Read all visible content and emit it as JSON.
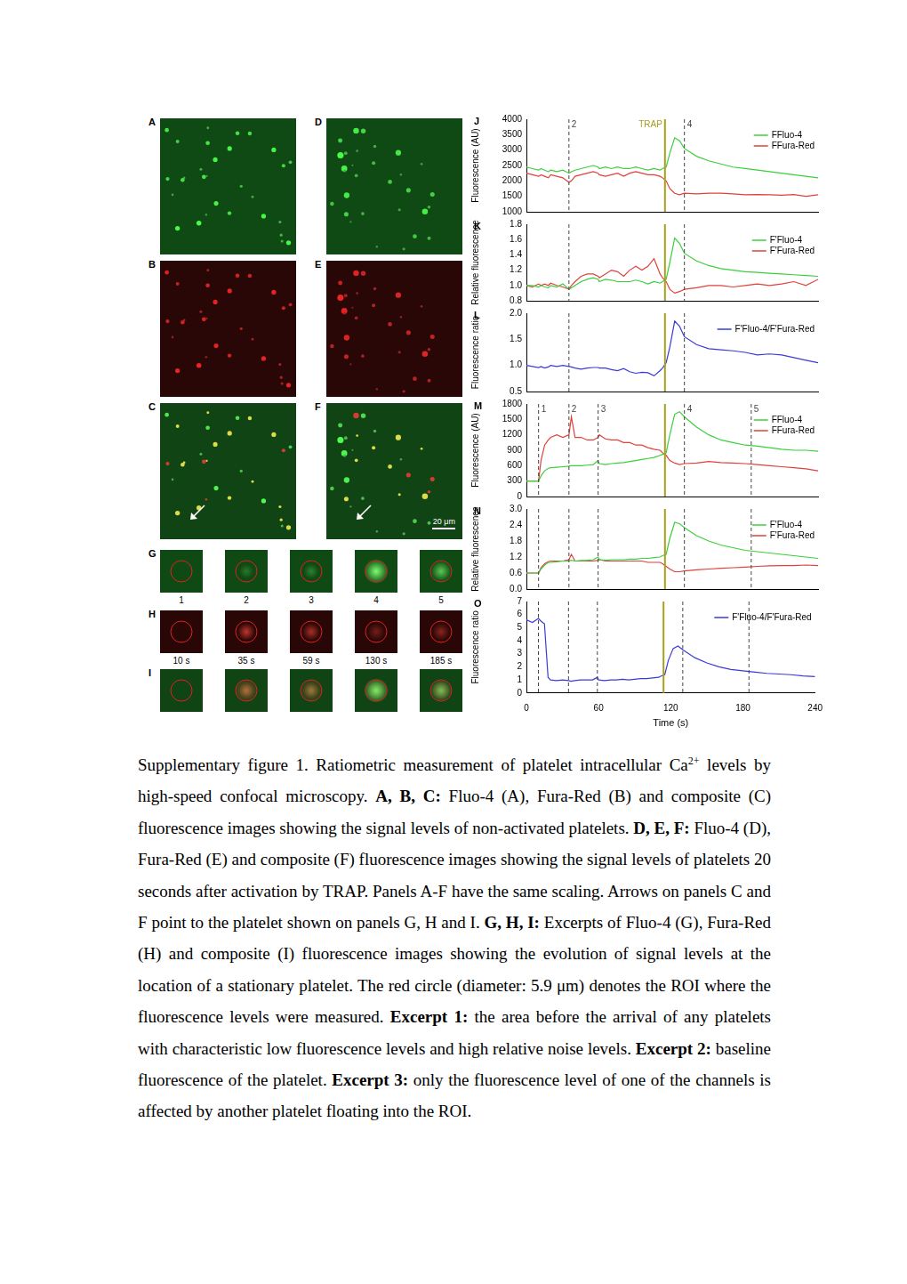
{
  "image_panels": {
    "large": [
      "A",
      "B",
      "C",
      "D",
      "E",
      "F"
    ],
    "arrows": [
      "C",
      "F"
    ],
    "scale_bar": {
      "panel": "F",
      "label": "20 μm"
    },
    "excerpt_rows": [
      "G",
      "H",
      "I"
    ],
    "excerpt_captions": {
      "G": [
        "1",
        "2",
        "3",
        "4",
        "5"
      ],
      "H": [
        "10 s",
        "35 s",
        "59 s",
        "130 s",
        "185 s"
      ]
    }
  },
  "chart_data": [
    {
      "label": "J",
      "type": "line",
      "y_label": "Fluorescence (AU)",
      "legend": "upper right",
      "tick_labels": "y",
      "grid": false,
      "xlim": [
        0,
        240
      ],
      "ylim": [
        1000,
        4000
      ],
      "yticks": [
        1000,
        1500,
        2000,
        2500,
        3000,
        3500,
        4000
      ],
      "x": [
        0,
        5,
        10,
        12,
        15,
        18,
        20,
        25,
        30,
        35,
        37,
        40,
        45,
        50,
        55,
        59,
        60,
        65,
        70,
        75,
        80,
        85,
        90,
        95,
        100,
        105,
        110,
        112,
        115,
        118,
        122,
        126,
        130,
        140,
        150,
        160,
        170,
        180,
        190,
        200,
        210,
        220,
        230,
        240
      ],
      "series": [
        {
          "name": "FFluo-4",
          "color": "#3ccf3c",
          "values": [
            2450,
            2400,
            2350,
            2400,
            2350,
            2300,
            2350,
            2300,
            2350,
            2250,
            2300,
            2350,
            2400,
            2450,
            2500,
            2450,
            2400,
            2450,
            2400,
            2450,
            2400,
            2400,
            2450,
            2400,
            2350,
            2400,
            2350,
            2400,
            2450,
            2900,
            3400,
            3300,
            3050,
            2800,
            2650,
            2550,
            2450,
            2400,
            2350,
            2300,
            2250,
            2200,
            2150,
            2100
          ]
        },
        {
          "name": "FFura-Red",
          "color": "#e0413a",
          "values": [
            2250,
            2200,
            2150,
            2200,
            2150,
            2100,
            2200,
            2150,
            2100,
            1950,
            2000,
            2150,
            2200,
            2250,
            2300,
            2250,
            2200,
            2150,
            2200,
            2250,
            2150,
            2250,
            2300,
            2250,
            2200,
            2200,
            2150,
            2100,
            2000,
            1750,
            1600,
            1550,
            1600,
            1580,
            1600,
            1600,
            1580,
            1550,
            1560,
            1550,
            1540,
            1560,
            1500,
            1550
          ]
        }
      ],
      "annotations": [
        {
          "value": 35,
          "label": "2",
          "line_style": "dashed"
        },
        {
          "value": 114,
          "label": "TRAP",
          "color": "#a89f1c",
          "line_style": "solid"
        },
        {
          "value": 130,
          "label": "4",
          "line_style": "dashed"
        }
      ]
    },
    {
      "label": "K",
      "type": "line",
      "y_label": "Relative fluorescence",
      "legend": "upper right",
      "tick_labels": "y",
      "grid": false,
      "xlim": [
        0,
        240
      ],
      "ylim": [
        0.8,
        1.8
      ],
      "yticks": [
        0.8,
        {
          "value": 1,
          "label": "1.0"
        },
        1.2,
        1.4,
        1.6,
        1.8
      ],
      "x": [
        0,
        5,
        10,
        12,
        15,
        18,
        20,
        25,
        30,
        35,
        37,
        40,
        45,
        50,
        55,
        59,
        60,
        65,
        70,
        75,
        80,
        85,
        90,
        95,
        100,
        105,
        110,
        112,
        115,
        118,
        122,
        126,
        130,
        140,
        150,
        160,
        170,
        180,
        190,
        200,
        210,
        220,
        230,
        240
      ],
      "series": [
        {
          "name": "F'Fluo-4",
          "color": "#3ccf3c",
          "values": [
            1.0,
            1.0,
            0.98,
            1.0,
            0.98,
            0.97,
            1.0,
            0.98,
            1.02,
            0.95,
            0.97,
            1.0,
            1.05,
            1.08,
            1.1,
            1.08,
            1.05,
            1.08,
            1.07,
            1.05,
            1.05,
            1.05,
            1.07,
            1.05,
            1.02,
            1.05,
            1.03,
            1.05,
            1.08,
            1.3,
            1.62,
            1.55,
            1.42,
            1.32,
            1.26,
            1.22,
            1.2,
            1.18,
            1.17,
            1.16,
            1.15,
            1.14,
            1.13,
            1.12
          ]
        },
        {
          "name": "F'Fura-Red",
          "color": "#e0413a",
          "values": [
            1.0,
            0.98,
            1.02,
            1.0,
            1.02,
            1.0,
            1.03,
            1.0,
            0.98,
            0.95,
            1.0,
            1.05,
            1.12,
            1.15,
            1.15,
            1.12,
            1.1,
            1.15,
            1.2,
            1.18,
            1.12,
            1.2,
            1.25,
            1.2,
            1.25,
            1.35,
            1.15,
            1.1,
            1.05,
            0.95,
            0.9,
            0.92,
            0.95,
            0.97,
            1.0,
            1.0,
            0.98,
            1.0,
            1.02,
            1.0,
            1.02,
            1.05,
            1.0,
            1.08
          ]
        }
      ],
      "annotations": [
        {
          "value": 35,
          "line_style": "dashed"
        },
        {
          "value": 114,
          "color": "#a89f1c",
          "line_style": "solid"
        },
        {
          "value": 130,
          "line_style": "dashed"
        }
      ]
    },
    {
      "label": "L",
      "type": "line",
      "y_label": "Fluorescence ratio",
      "legend": "upper right",
      "tick_labels": "y",
      "grid": false,
      "xlim": [
        0,
        240
      ],
      "ylim": [
        0.5,
        2
      ],
      "yticks": [
        0.5,
        {
          "value": 1,
          "label": "1.0"
        },
        1.5,
        {
          "value": 2,
          "label": "2.0"
        }
      ],
      "x": [
        0,
        5,
        10,
        12,
        15,
        18,
        20,
        25,
        30,
        35,
        37,
        40,
        45,
        50,
        55,
        59,
        60,
        65,
        70,
        75,
        80,
        85,
        90,
        95,
        100,
        105,
        110,
        112,
        115,
        118,
        122,
        126,
        130,
        140,
        150,
        160,
        170,
        180,
        190,
        200,
        210,
        220,
        230,
        240
      ],
      "series": [
        {
          "name": "F'Fluo-4/F'Fura-Red",
          "color": "#3a3ad8",
          "values": [
            1.0,
            0.98,
            0.96,
            0.98,
            0.95,
            0.97,
            1.0,
            0.98,
            1.0,
            0.98,
            0.97,
            0.95,
            0.93,
            0.95,
            0.96,
            0.96,
            0.95,
            0.95,
            0.92,
            0.9,
            0.94,
            0.88,
            0.85,
            0.87,
            0.86,
            0.8,
            0.9,
            0.95,
            1.05,
            1.35,
            1.85,
            1.75,
            1.55,
            1.4,
            1.32,
            1.3,
            1.28,
            1.25,
            1.2,
            1.22,
            1.2,
            1.15,
            1.1,
            1.05
          ]
        }
      ],
      "annotations": [
        {
          "value": 35,
          "line_style": "dashed"
        },
        {
          "value": 114,
          "color": "#a89f1c",
          "line_style": "solid"
        },
        {
          "value": 130,
          "line_style": "dashed"
        }
      ]
    },
    {
      "label": "M",
      "type": "line",
      "y_label": "Fluorescence (AU)",
      "legend": "upper right",
      "tick_labels": "y",
      "grid": false,
      "xlim": [
        0,
        240
      ],
      "ylim": [
        0,
        1800
      ],
      "yticks": [
        0,
        300,
        600,
        900,
        1200,
        1500,
        1800
      ],
      "x": [
        0,
        5,
        10,
        12,
        15,
        18,
        20,
        25,
        30,
        35,
        37,
        40,
        45,
        50,
        55,
        59,
        60,
        65,
        70,
        75,
        80,
        85,
        90,
        95,
        100,
        105,
        110,
        112,
        115,
        118,
        122,
        126,
        130,
        140,
        150,
        160,
        170,
        180,
        190,
        200,
        210,
        220,
        230,
        240
      ],
      "series": [
        {
          "name": "FFluo-4",
          "color": "#3ccf3c",
          "values": [
            300,
            300,
            300,
            400,
            500,
            550,
            560,
            570,
            580,
            590,
            600,
            600,
            600,
            610,
            620,
            700,
            640,
            620,
            640,
            650,
            660,
            680,
            700,
            720,
            740,
            760,
            800,
            820,
            850,
            1200,
            1600,
            1650,
            1550,
            1350,
            1200,
            1100,
            1050,
            1000,
            980,
            950,
            920,
            900,
            900,
            880
          ]
        },
        {
          "name": "FFura-Red",
          "color": "#e0413a",
          "values": [
            300,
            300,
            300,
            700,
            1000,
            1100,
            1150,
            1200,
            1150,
            1200,
            1550,
            1150,
            1150,
            1100,
            1100,
            1150,
            1200,
            1120,
            1100,
            1100,
            1050,
            1050,
            1000,
            1000,
            950,
            920,
            900,
            850,
            800,
            700,
            650,
            620,
            640,
            650,
            680,
            660,
            650,
            640,
            620,
            600,
            580,
            560,
            540,
            500
          ]
        }
      ],
      "annotations": [
        {
          "value": 10,
          "label": "1",
          "line_style": "dashed"
        },
        {
          "value": 35,
          "label": "2",
          "line_style": "dashed"
        },
        {
          "value": 59,
          "label": "3",
          "line_style": "dashed"
        },
        {
          "value": 114,
          "color": "#a89f1c",
          "line_style": "solid"
        },
        {
          "value": 130,
          "label": "4",
          "line_style": "dashed"
        },
        {
          "value": 185,
          "label": "5",
          "line_style": "dashed"
        }
      ]
    },
    {
      "label": "N",
      "type": "line",
      "y_label": "Relative fluorescence",
      "legend": "upper right",
      "tick_labels": "y",
      "grid": false,
      "xlim": [
        0,
        240
      ],
      "ylim": [
        0,
        3
      ],
      "yticks": [
        {
          "value": 0,
          "label": "0.0"
        },
        0.6,
        1.2,
        1.8,
        2.4,
        {
          "value": 3,
          "label": "3.0"
        }
      ],
      "x": [
        0,
        5,
        10,
        12,
        15,
        18,
        20,
        25,
        30,
        35,
        37,
        40,
        45,
        50,
        55,
        59,
        60,
        65,
        70,
        75,
        80,
        85,
        90,
        95,
        100,
        105,
        110,
        112,
        115,
        118,
        122,
        126,
        130,
        140,
        150,
        160,
        170,
        180,
        190,
        200,
        210,
        220,
        230,
        240
      ],
      "series": [
        {
          "name": "F'Fluo-4",
          "color": "#3ccf3c",
          "values": [
            0.6,
            0.6,
            0.6,
            0.75,
            0.9,
            1.0,
            1.0,
            1.02,
            1.05,
            1.05,
            1.08,
            1.05,
            1.07,
            1.08,
            1.1,
            1.2,
            1.1,
            1.08,
            1.1,
            1.1,
            1.1,
            1.12,
            1.12,
            1.15,
            1.15,
            1.18,
            1.2,
            1.25,
            1.3,
            1.9,
            2.5,
            2.45,
            2.3,
            2.0,
            1.8,
            1.65,
            1.55,
            1.45,
            1.4,
            1.35,
            1.3,
            1.25,
            1.2,
            1.15
          ]
        },
        {
          "name": "F'Fura-Red",
          "color": "#e0413a",
          "values": [
            0.6,
            0.6,
            0.6,
            0.8,
            0.95,
            1.02,
            1.05,
            1.05,
            1.05,
            1.1,
            1.3,
            1.05,
            1.05,
            1.05,
            1.05,
            1.08,
            1.1,
            1.05,
            1.05,
            1.05,
            1.05,
            1.05,
            1.05,
            1.05,
            1.0,
            1.0,
            1.0,
            0.95,
            0.85,
            0.75,
            0.65,
            0.65,
            0.68,
            0.72,
            0.75,
            0.78,
            0.8,
            0.82,
            0.85,
            0.87,
            0.88,
            0.88,
            0.9,
            0.88
          ]
        }
      ],
      "annotations": [
        {
          "value": 10,
          "line_style": "dashed"
        },
        {
          "value": 35,
          "line_style": "dashed"
        },
        {
          "value": 59,
          "line_style": "dashed"
        },
        {
          "value": 114,
          "color": "#a89f1c",
          "line_style": "solid"
        },
        {
          "value": 130,
          "line_style": "dashed"
        },
        {
          "value": 185,
          "line_style": "dashed"
        }
      ]
    },
    {
      "label": "O",
      "type": "line",
      "y_label": "Fluorescence ratio",
      "x_label": "Time (s)",
      "legend": "upper right",
      "grid": false,
      "xlim": [
        0,
        240
      ],
      "xticks": [
        0,
        60,
        120,
        180,
        240
      ],
      "ylim": [
        0,
        7
      ],
      "yticks": [
        0,
        1,
        2,
        3,
        4,
        5,
        6,
        7
      ],
      "x": [
        0,
        5,
        10,
        12,
        15,
        18,
        20,
        25,
        30,
        35,
        37,
        40,
        45,
        50,
        55,
        59,
        60,
        65,
        70,
        75,
        80,
        85,
        90,
        95,
        100,
        105,
        110,
        112,
        115,
        118,
        122,
        126,
        130,
        140,
        150,
        160,
        170,
        180,
        190,
        200,
        210,
        220,
        230,
        240
      ],
      "series": [
        {
          "name": "F'Fluo-4/F'Fura-Red",
          "color": "#3a3ad8",
          "values": [
            5.6,
            5.4,
            5.7,
            5.5,
            5.3,
            1.2,
            1.0,
            0.95,
            1.0,
            0.95,
            0.9,
            0.95,
            1.0,
            1.0,
            1.0,
            1.2,
            1.0,
            0.95,
            1.0,
            1.0,
            1.05,
            1.0,
            1.05,
            1.1,
            1.1,
            1.15,
            1.2,
            1.3,
            1.4,
            2.5,
            3.4,
            3.6,
            3.3,
            2.7,
            2.3,
            2.0,
            1.8,
            1.7,
            1.6,
            1.5,
            1.45,
            1.4,
            1.3,
            1.25
          ]
        }
      ],
      "annotations": [
        {
          "value": 10,
          "line_style": "dashed"
        },
        {
          "value": 35,
          "line_style": "dashed"
        },
        {
          "value": 59,
          "line_style": "dashed"
        },
        {
          "value": 114,
          "color": "#a89f1c",
          "line_style": "solid"
        },
        {
          "value": 130,
          "line_style": "dashed"
        },
        {
          "value": 185,
          "line_style": "dashed"
        }
      ]
    }
  ],
  "caption": [
    {
      "text": "Supplementary figure 1. Ratiometric measurement of platelet intracellular Ca"
    },
    {
      "text": "2+",
      "sup": true
    },
    {
      "text": " levels by high-speed confocal microscopy. "
    },
    {
      "text": "A, B, C:",
      "bold": true
    },
    {
      "text": " Fluo-4 (A), Fura-Red (B) and composite (C) fluorescence images showing the signal levels of non-activated platelets. "
    },
    {
      "text": "D, E, F:",
      "bold": true
    },
    {
      "text": " Fluo-4 (D), Fura-Red (E) and composite (F) fluorescence images showing the signal levels of platelets 20 seconds after activation by TRAP. Panels A-F have the same scaling. Arrows on panels C and F point to the platelet shown on panels G, H and I. "
    },
    {
      "text": "G, H, I:",
      "bold": true
    },
    {
      "text": " Excerpts of Fluo-4 (G), Fura-Red (H) and composite (I) fluorescence images showing the evolution of signal levels at the location of a stationary platelet. The red circle (diameter: 5.9 μm) denotes the ROI where the fluorescence levels were measured. "
    },
    {
      "text": "Excerpt 1:",
      "bold": true
    },
    {
      "text": " the area before the arrival of any platelets with characteristic low fluorescence levels and high relative noise levels. "
    },
    {
      "text": "Excerpt 2:",
      "bold": true
    },
    {
      "text": " baseline fluorescence of the platelet. "
    },
    {
      "text": "Excerpt 3:",
      "bold": true
    },
    {
      "text": " only the fluorescence level of one of the channels is affected by another platelet floating into the ROI."
    }
  ]
}
